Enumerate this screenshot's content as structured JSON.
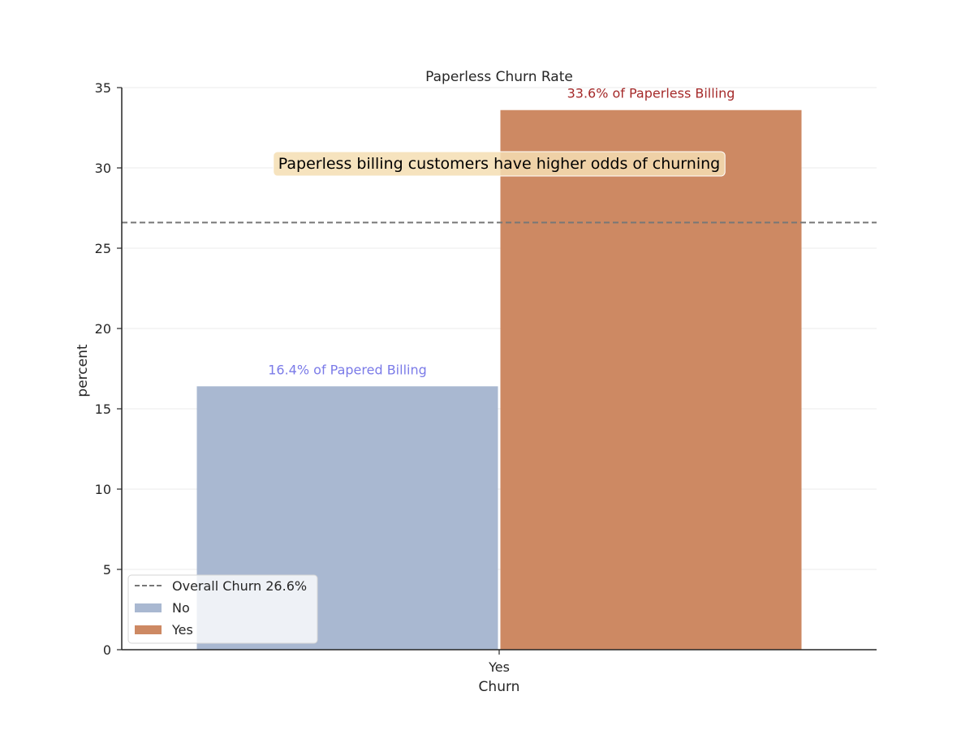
{
  "chart_data": {
    "type": "bar",
    "title": "Paperless Churn Rate",
    "xlabel": "Churn",
    "ylabel": "percent",
    "categories": [
      "Yes"
    ],
    "ylim": [
      0,
      35
    ],
    "yticks": [
      0,
      5,
      10,
      15,
      20,
      25,
      30,
      35
    ],
    "grid": "horizontal",
    "series": [
      {
        "name": "No",
        "values": [
          16.4
        ],
        "color": "#a9b8d1",
        "data_label": "16.4% of Papered Billing",
        "label_color": "#7b7be8"
      },
      {
        "name": "Yes",
        "values": [
          33.6
        ],
        "color": "#cd8963",
        "data_label": "33.6% of Paperless Billing",
        "label_color": "#a52a2a"
      }
    ],
    "reference_line": {
      "label": "Overall Churn 26.6%",
      "value": 26.6,
      "color": "#777777",
      "style": "dashed"
    },
    "annotation": {
      "text": "Paperless billing customers have higher odds of churning",
      "y": 30.3,
      "background": "#f5deb3"
    },
    "legend": {
      "placement": "lower-left"
    }
  }
}
